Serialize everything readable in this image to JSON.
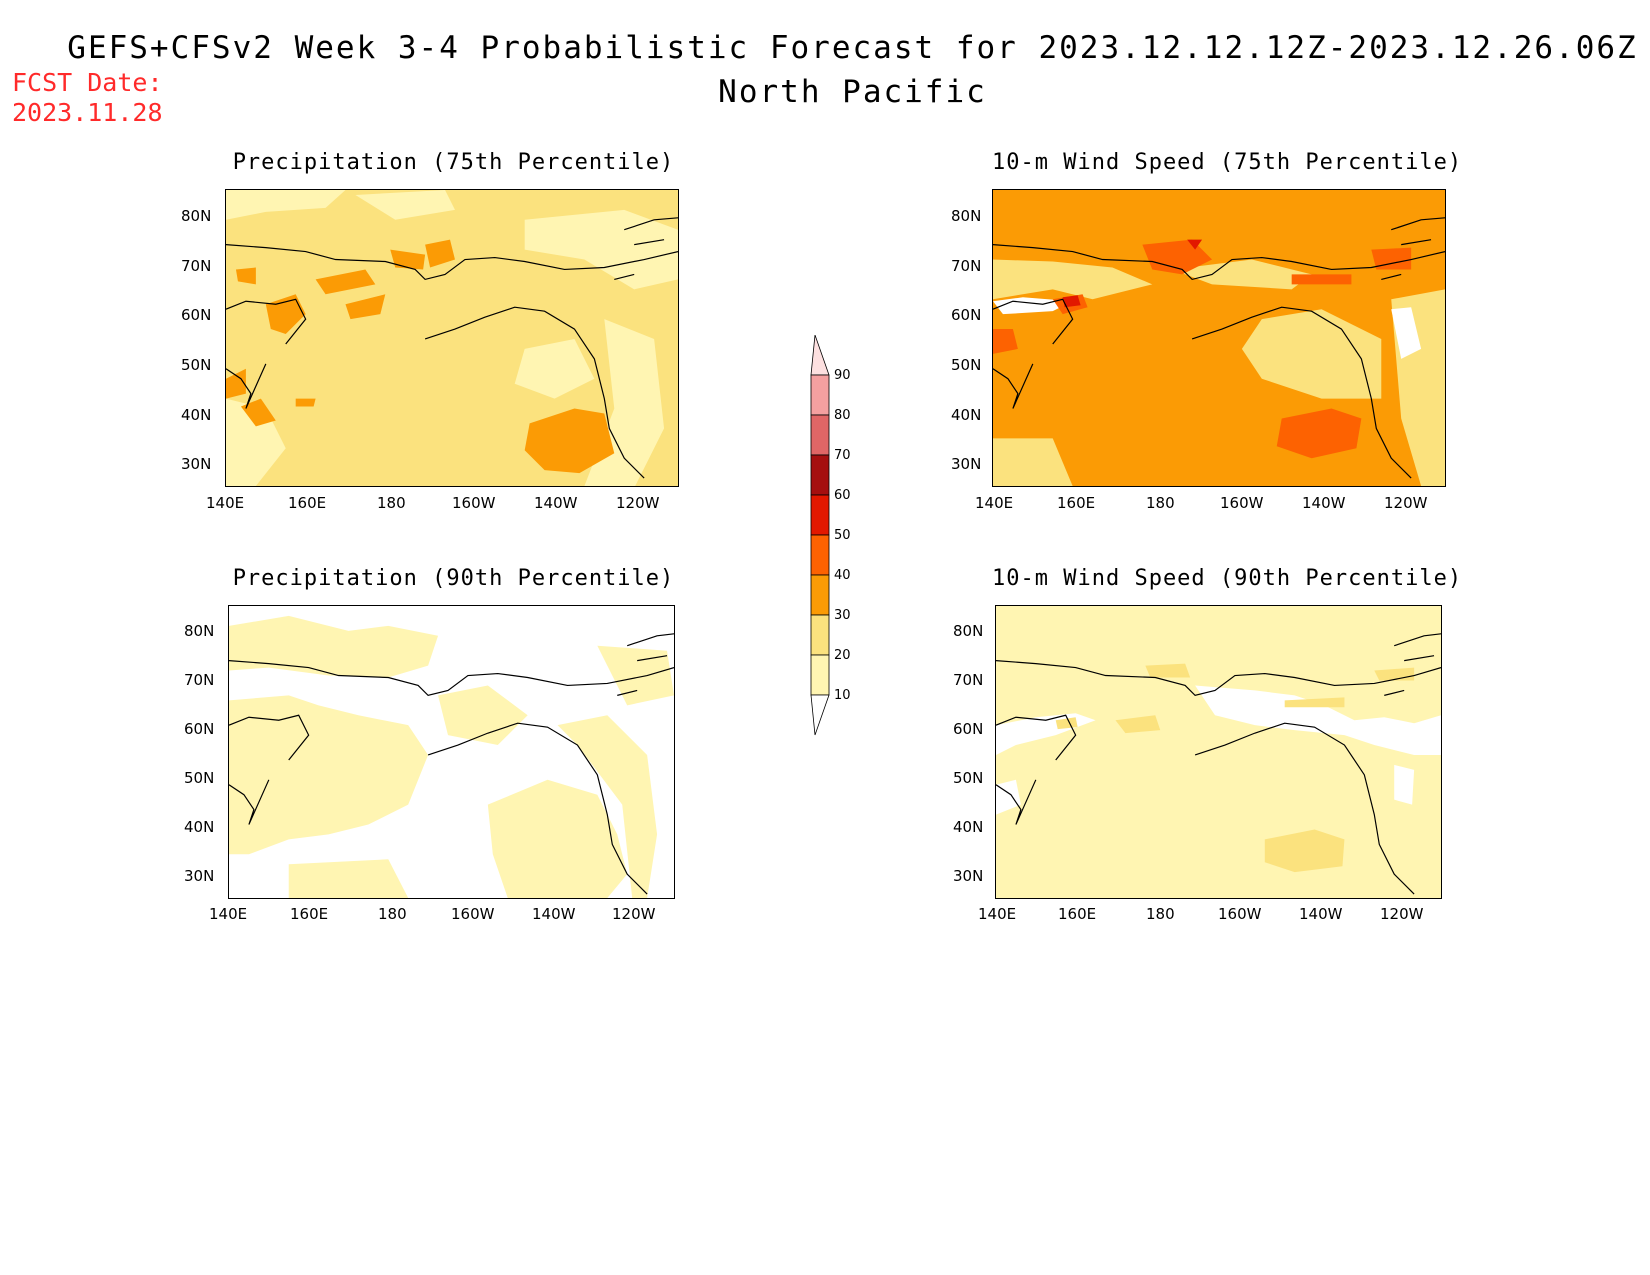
{
  "header": {
    "title_line1": "GEFS+CFSv2 Week 3-4 Probabilistic Forecast for 2023.12.12.12Z-2023.12.26.06Z",
    "title_line2": "North Pacific",
    "fcst_label": "FCST Date:",
    "fcst_value": "2023.11.28"
  },
  "axes": {
    "lat_labels": [
      "80N",
      "70N",
      "60N",
      "50N",
      "40N",
      "30N"
    ],
    "lon_labels": [
      "140E",
      "160E",
      "180",
      "160W",
      "140W",
      "120W"
    ]
  },
  "panels": [
    {
      "id": "precip75",
      "title": "Precipitation (75th Percentile)",
      "base_color": "#fbe27e"
    },
    {
      "id": "wind75",
      "title": "10-m Wind Speed (75th Percentile)",
      "base_color": "#fb9b05"
    },
    {
      "id": "precip90",
      "title": "Precipitation (90th Percentile)",
      "base_color": "#fff5b2"
    },
    {
      "id": "wind90",
      "title": "10-m Wind Speed (90th Percentile)",
      "base_color": "#fff5b2"
    }
  ],
  "colorbar": {
    "labels": [
      "90",
      "80",
      "70",
      "60",
      "50",
      "40",
      "30",
      "20",
      "10"
    ],
    "colors": [
      "#fde0e0",
      "#f4a0a0",
      "#e06666",
      "#a50f0f",
      "#e21800",
      "#fd6201",
      "#fb9b05",
      "#fbe27e",
      "#fff5b2"
    ]
  }
}
